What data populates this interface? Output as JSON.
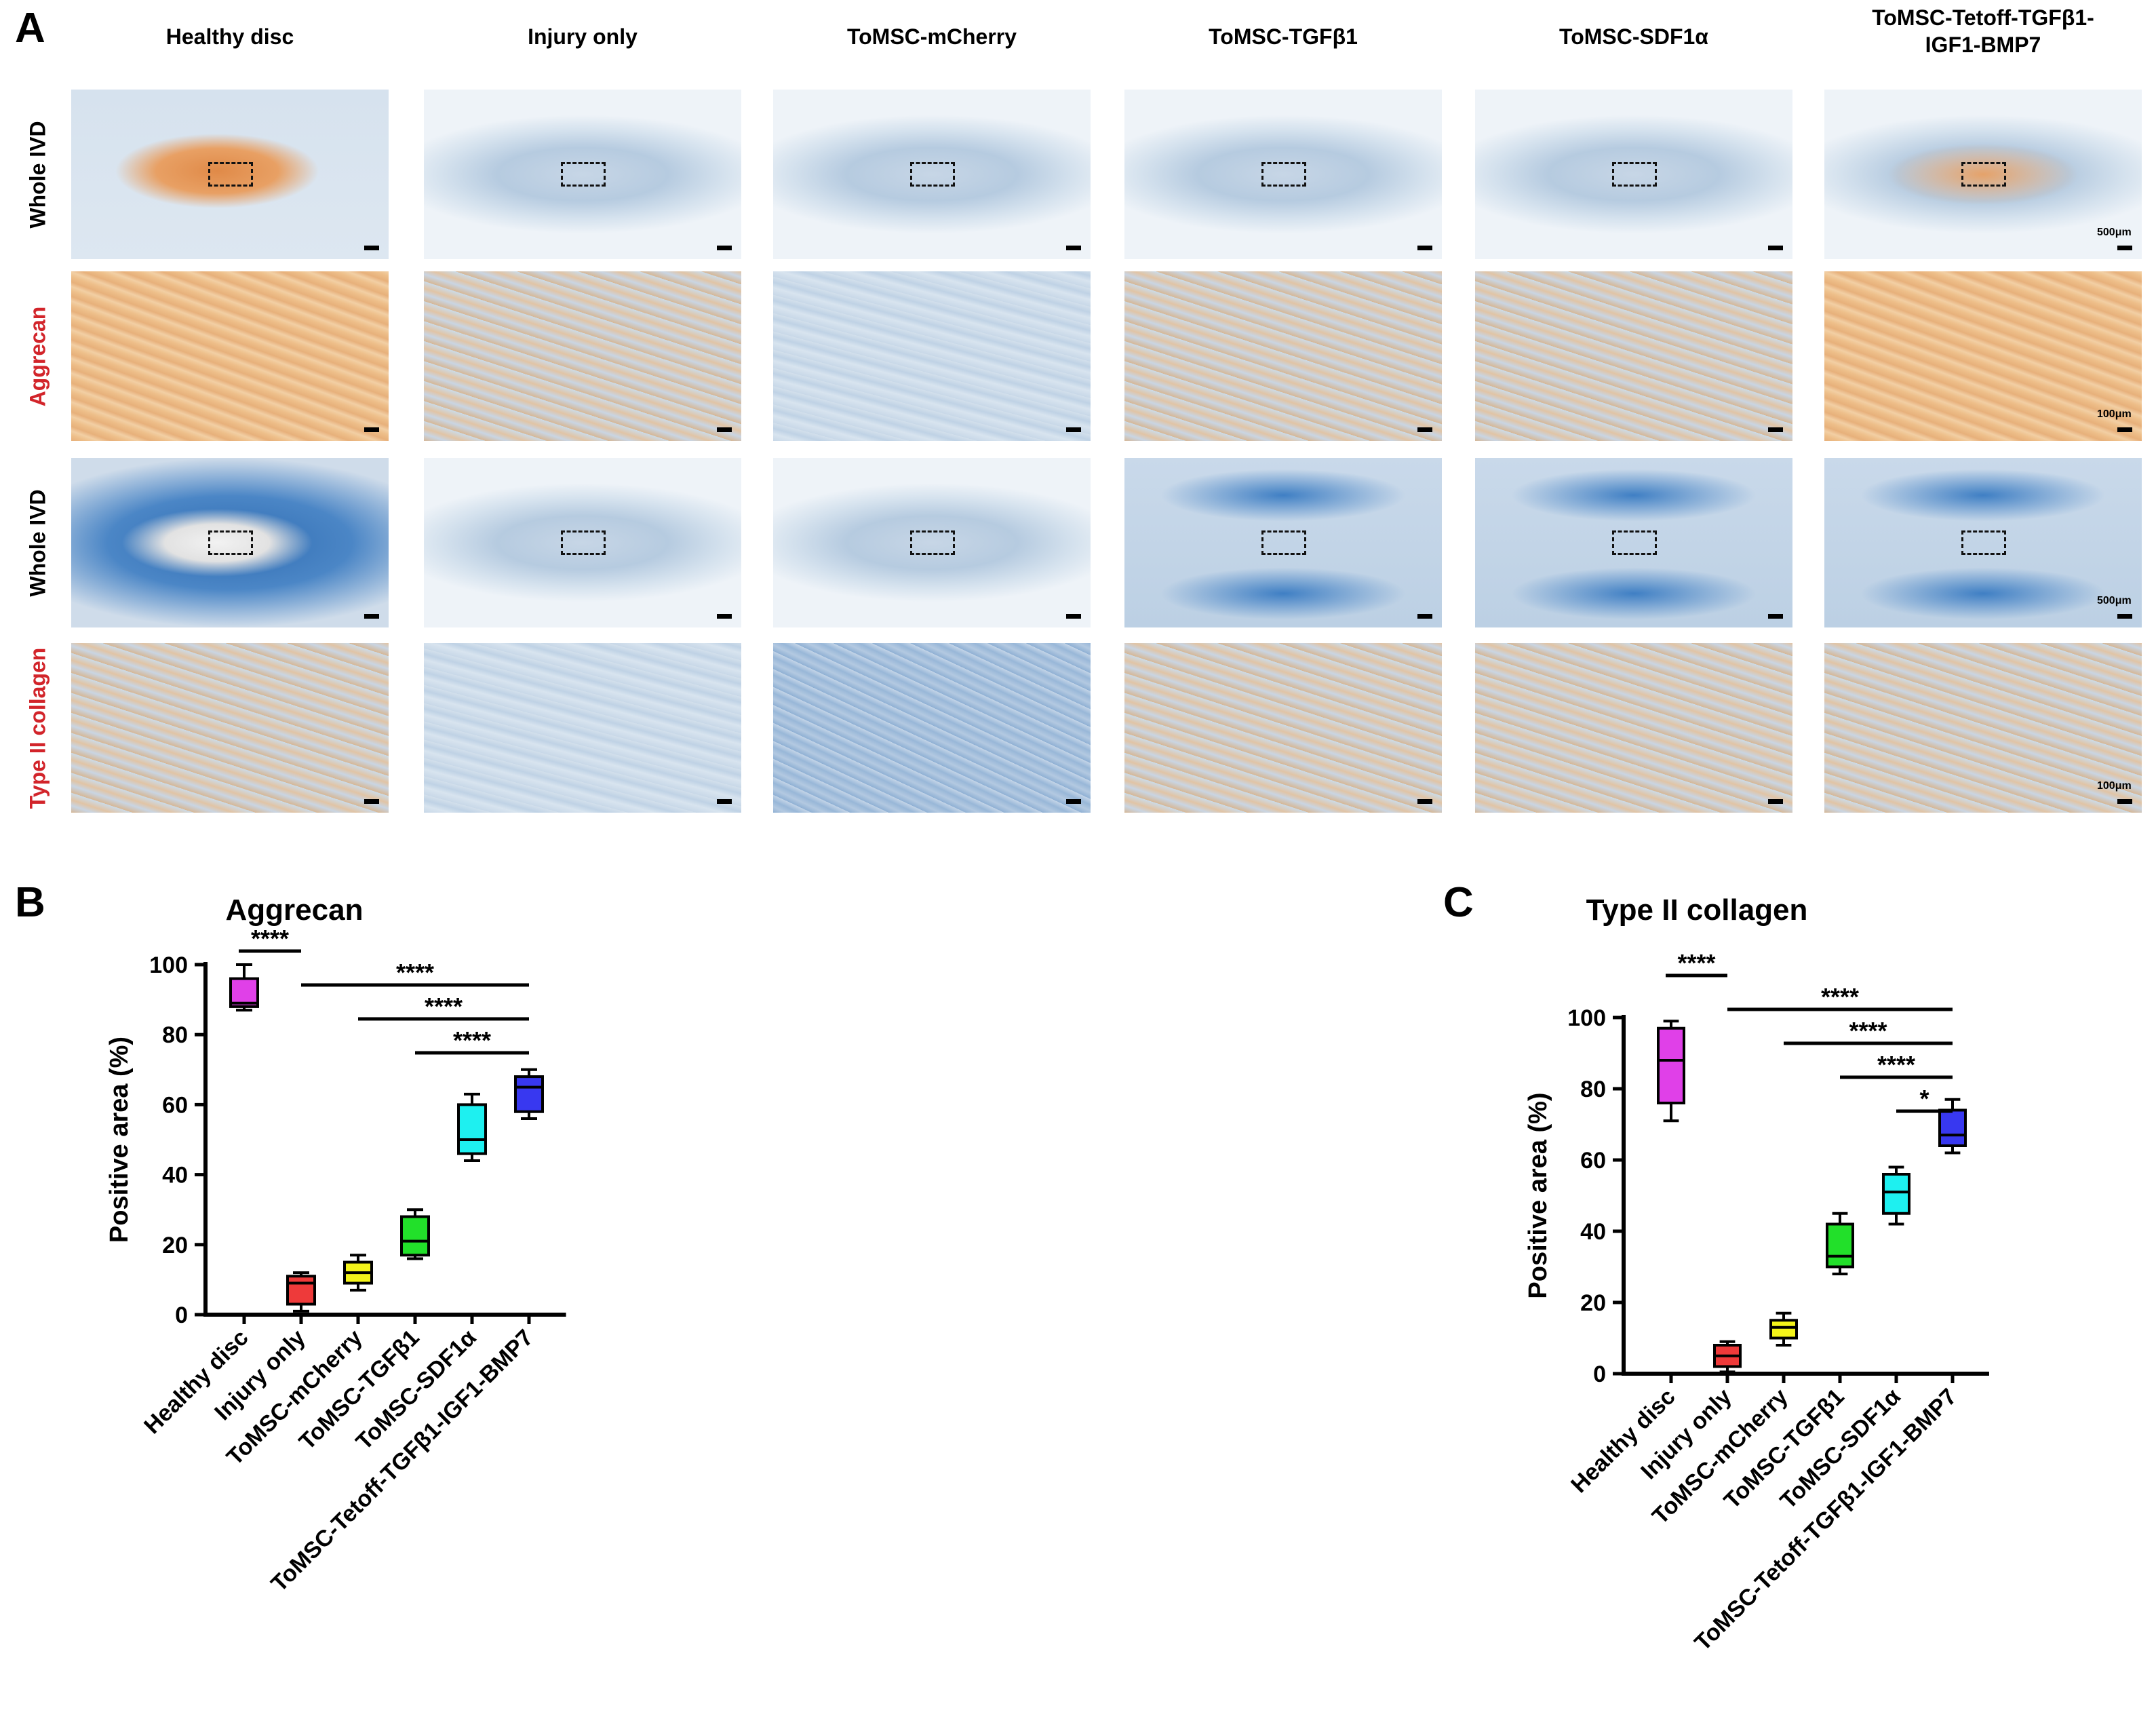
{
  "figure": {
    "panel_labels": {
      "a": "A",
      "b": "B",
      "c": "C"
    },
    "columns": [
      "Healthy disc",
      "Injury only",
      "ToMSC-mCherry",
      "ToMSC-TGFβ1",
      "ToMSC-SDF1α",
      "ToMSC-Tetoff-TGFβ1-IGF1-BMP7"
    ],
    "column_header_lines": [
      [
        "Healthy disc"
      ],
      [
        "Injury only"
      ],
      [
        "ToMSC-mCherry"
      ],
      [
        "ToMSC-TGFβ1"
      ],
      [
        "ToMSC-SDF1α"
      ],
      [
        "ToMSC-Tetoff-TGFβ1-",
        "IGF1-BMP7"
      ]
    ],
    "rows": [
      {
        "label": "Whole IVD",
        "label_color": "#000000",
        "scale": "500μm"
      },
      {
        "label": "Aggrecan",
        "label_color": "#d2242a",
        "scale": "100μm"
      },
      {
        "label": "Whole IVD",
        "label_color": "#000000",
        "scale": "500μm"
      },
      {
        "label": "Type II collagen",
        "label_color": "#d2242a",
        "scale": "100μm"
      }
    ],
    "box_colors": [
      "#e040e8",
      "#ee3a3a",
      "#f4f41a",
      "#22e02a",
      "#1ef0f0",
      "#3838f0"
    ]
  },
  "chart_data": [
    {
      "type": "box",
      "title": "Aggrecan",
      "ylabel": "Positive area (%)",
      "xlabel": "",
      "ylim": [
        0,
        100
      ],
      "yticks": [
        0,
        20,
        40,
        60,
        80,
        100
      ],
      "categories": [
        "Healthy disc",
        "Injury only",
        "ToMSC-mCherry",
        "ToMSC-TGFβ1",
        "ToMSC-SDF1α",
        "ToMSC-Tetoff-TGFβ1-IGF1-BMP7"
      ],
      "boxes": [
        {
          "min": 87,
          "q1": 88,
          "median": 89,
          "q3": 96,
          "max": 100
        },
        {
          "min": 1,
          "q1": 3,
          "median": 9,
          "q3": 11,
          "max": 12
        },
        {
          "min": 7,
          "q1": 9,
          "median": 12,
          "q3": 15,
          "max": 17
        },
        {
          "min": 16,
          "q1": 17,
          "median": 21,
          "q3": 28,
          "max": 30
        },
        {
          "min": 44,
          "q1": 46,
          "median": 50,
          "q3": 60,
          "max": 63
        },
        {
          "min": 56,
          "q1": 58,
          "median": 65,
          "q3": 68,
          "max": 70
        }
      ],
      "significance": [
        {
          "from": 0,
          "to": 1,
          "label": "****"
        },
        {
          "from": 1,
          "to": 5,
          "label": "****"
        },
        {
          "from": 2,
          "to": 5,
          "label": "****"
        },
        {
          "from": 3,
          "to": 5,
          "label": "****"
        }
      ]
    },
    {
      "type": "box",
      "title": "Type II collagen",
      "ylabel": "Positive area (%)",
      "xlabel": "",
      "ylim": [
        0,
        100
      ],
      "yticks": [
        0,
        20,
        40,
        60,
        80,
        100
      ],
      "categories": [
        "Healthy disc",
        "Injury only",
        "ToMSC-mCherry",
        "ToMSC-TGFβ1",
        "ToMSC-SDF1α",
        "ToMSC-Tetoff-TGFβ1-IGF1-BMP7"
      ],
      "boxes": [
        {
          "min": 71,
          "q1": 76,
          "median": 88,
          "q3": 97,
          "max": 99
        },
        {
          "min": 0.5,
          "q1": 2,
          "median": 5,
          "q3": 8,
          "max": 9
        },
        {
          "min": 8,
          "q1": 10,
          "median": 13,
          "q3": 15,
          "max": 17
        },
        {
          "min": 28,
          "q1": 30,
          "median": 33,
          "q3": 42,
          "max": 45
        },
        {
          "min": 42,
          "q1": 45,
          "median": 51,
          "q3": 56,
          "max": 58
        },
        {
          "min": 62,
          "q1": 64,
          "median": 67,
          "q3": 74,
          "max": 77
        }
      ],
      "significance": [
        {
          "from": 0,
          "to": 1,
          "label": "****"
        },
        {
          "from": 1,
          "to": 5,
          "label": "****"
        },
        {
          "from": 2,
          "to": 5,
          "label": "****"
        },
        {
          "from": 3,
          "to": 5,
          "label": "****"
        },
        {
          "from": 4,
          "to": 5,
          "label": "*"
        }
      ]
    }
  ]
}
